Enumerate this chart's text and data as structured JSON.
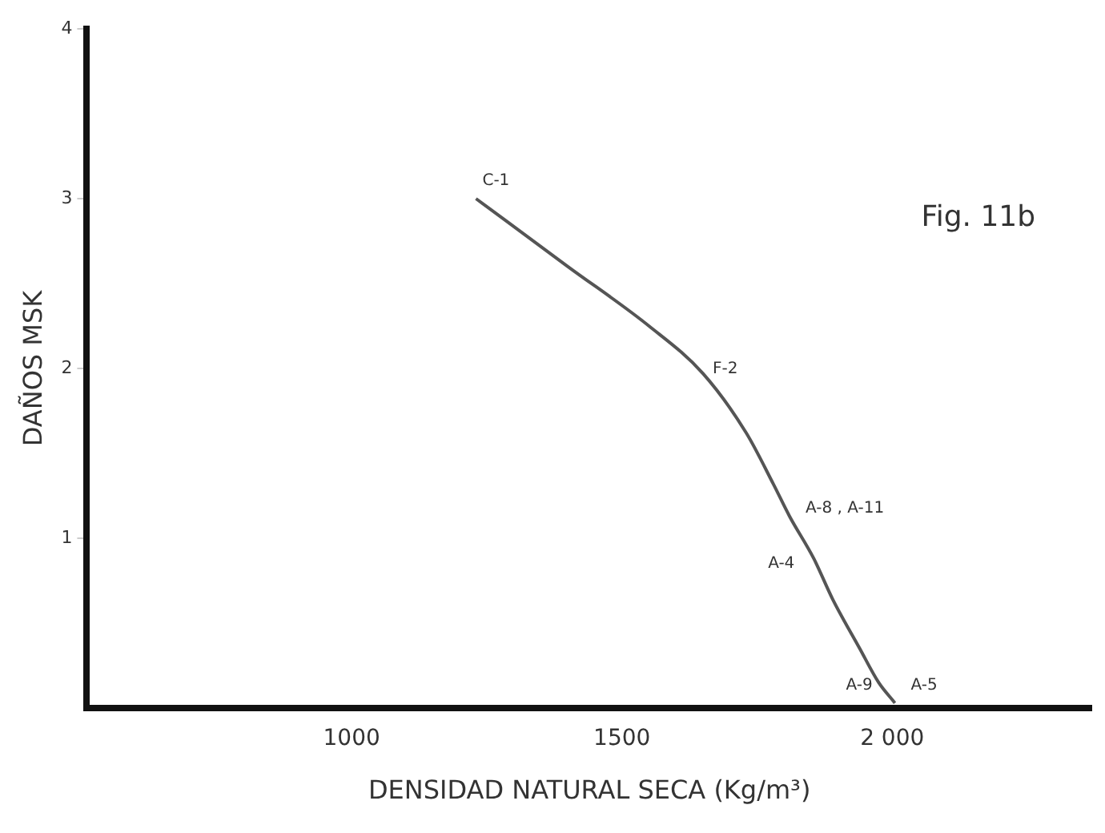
{
  "chart_data": {
    "type": "line",
    "xlabel": "DENSIDAD NATURAL SECA (Kg/m³)",
    "ylabel": "DAÑOS MSK",
    "x": [
      1230,
      1400,
      1550,
      1650,
      1730,
      1780,
      1810,
      1855,
      1890,
      1940,
      1975,
      2005
    ],
    "series": [
      {
        "color": "#555555",
        "values": [
          3,
          2.6,
          2.25,
          1.97,
          1.62,
          1.32,
          1.13,
          0.88,
          0.64,
          0.35,
          0.15,
          0.03
        ]
      }
    ],
    "xlim": [
      510,
      2370
    ],
    "ylim": [
      0,
      4
    ],
    "xticks": [
      1000,
      1500,
      {
        "value": 2000,
        "label": "2 000"
      }
    ],
    "yticks": [
      1,
      2,
      3,
      4
    ],
    "grid": false,
    "legend": false,
    "marker": "none",
    "line_style": "solid",
    "annotations": [
      "Fig. 11b",
      {
        "text": "C-1",
        "x": 1230,
        "y": 3
      },
      {
        "text": "F-2",
        "x": 1650,
        "y": 1.97
      },
      {
        "text": "A-8 , A-11",
        "x": 1810,
        "y": 1.13
      },
      {
        "text": "A-4",
        "x": 1855,
        "y": 0.88
      },
      {
        "text": "A-9",
        "x": 2005,
        "y": 0.03
      },
      {
        "text": "A-5",
        "x": 2005,
        "y": 0.03
      }
    ]
  }
}
